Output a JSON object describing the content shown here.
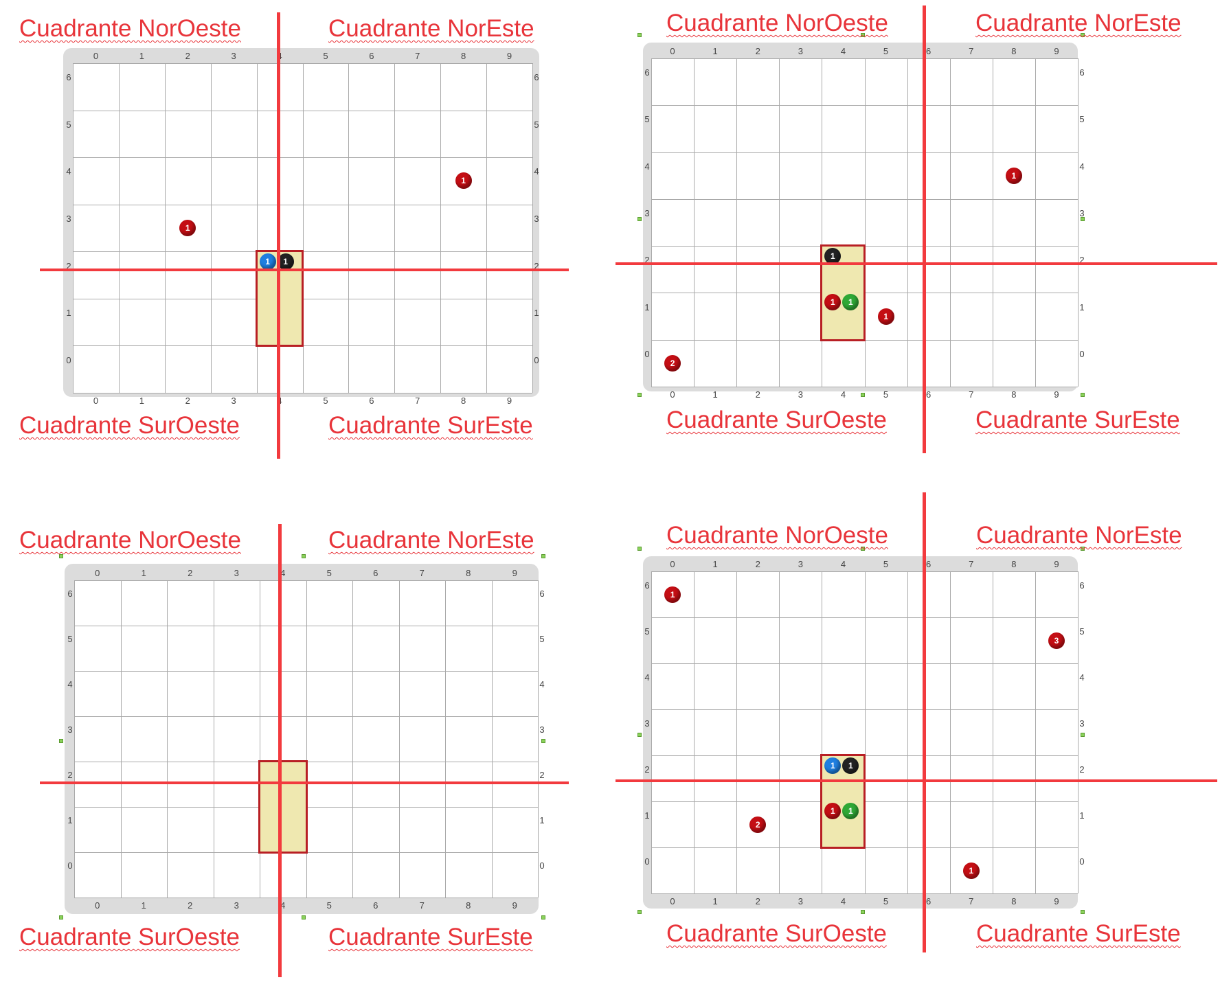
{
  "colors": {
    "red": "#c40e14",
    "blue": "#1f7fe0",
    "black": "#222222",
    "green": "#2fa836",
    "axis": "#f23a3e",
    "highlight": "#efe8b0"
  },
  "x_ticks": [
    "0",
    "1",
    "2",
    "3",
    "4",
    "5",
    "6",
    "7",
    "8",
    "9"
  ],
  "y_ticks": [
    "0",
    "1",
    "2",
    "3",
    "4",
    "5",
    "6"
  ],
  "panels": [
    {
      "labels": {
        "nw": "Cuadrante NorOeste",
        "ne": "Cuadrante NorEste",
        "sw": "Cuadrante SurOeste",
        "se": "Cuadrante SurEste"
      },
      "pieces": [
        {
          "col": 2,
          "row": 3,
          "color": "red",
          "label": "1"
        },
        {
          "col": 8,
          "row": 4,
          "color": "red",
          "label": "1"
        },
        {
          "col": 4,
          "row": 2,
          "color": "blue",
          "label": "1"
        },
        {
          "col": 4,
          "row": 2,
          "color": "black",
          "label": "1"
        }
      ]
    },
    {
      "labels": {
        "nw": "Cuadrante NorOeste",
        "ne": "Cuadrante NorEste",
        "sw": "Cuadrante SurOeste",
        "se": "Cuadrante SurEste"
      },
      "pieces": [
        {
          "col": 8,
          "row": 4,
          "color": "red",
          "label": "1"
        },
        {
          "col": 4,
          "row": 2,
          "color": "black",
          "label": "1"
        },
        {
          "col": 4,
          "row": 1,
          "color": "red",
          "label": "1"
        },
        {
          "col": 4,
          "row": 1,
          "color": "green",
          "label": "1"
        },
        {
          "col": 5,
          "row": 1,
          "color": "red",
          "label": "1"
        },
        {
          "col": 0,
          "row": 0,
          "color": "red",
          "label": "2"
        }
      ]
    },
    {
      "labels": {
        "nw": "Cuadrante NorOeste",
        "ne": "Cuadrante NorEste",
        "sw": "Cuadrante SurOeste",
        "se": "Cuadrante SurEste"
      },
      "pieces": []
    },
    {
      "labels": {
        "nw": "Cuadrante NorOeste",
        "ne": "Cuadrante NorEste",
        "sw": "Cuadrante SurOeste",
        "se": "Cuadrante SurEste"
      },
      "pieces": [
        {
          "col": 0,
          "row": 6,
          "color": "red",
          "label": "1"
        },
        {
          "col": 9,
          "row": 5,
          "color": "red",
          "label": "3"
        },
        {
          "col": 4,
          "row": 2,
          "color": "blue",
          "label": "1"
        },
        {
          "col": 4,
          "row": 2,
          "color": "black",
          "label": "1"
        },
        {
          "col": 4,
          "row": 1,
          "color": "red",
          "label": "1"
        },
        {
          "col": 4,
          "row": 1,
          "color": "green",
          "label": "1"
        },
        {
          "col": 2,
          "row": 1,
          "color": "red",
          "label": "2"
        },
        {
          "col": 7,
          "row": 0,
          "color": "red",
          "label": "1"
        }
      ]
    }
  ]
}
